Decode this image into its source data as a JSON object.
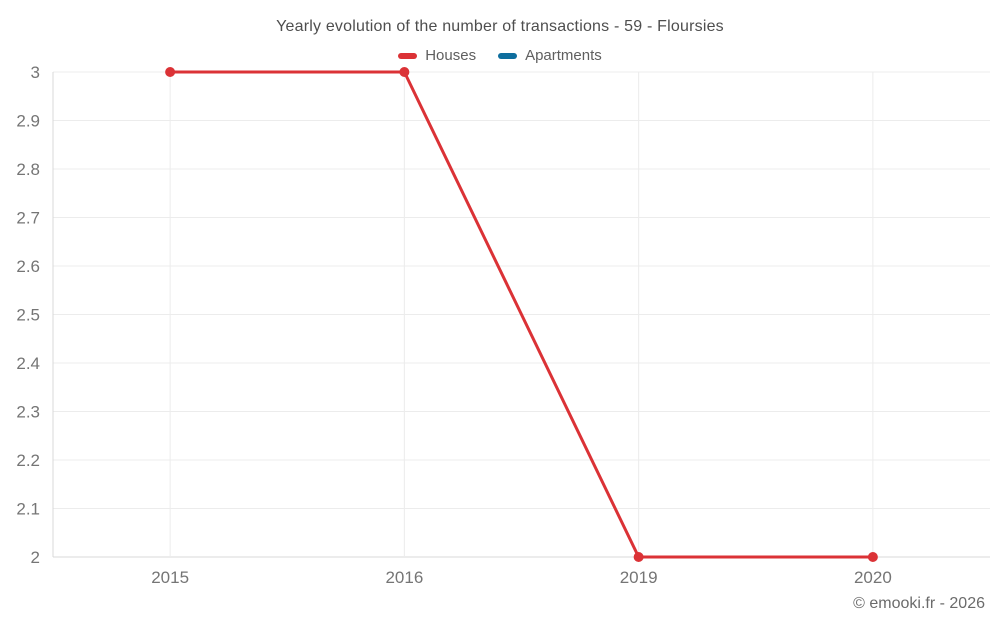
{
  "chart_data": {
    "type": "line",
    "title": "Yearly evolution of the number of transactions - 59 - Floursies",
    "categories": [
      "2015",
      "2016",
      "2019",
      "2020"
    ],
    "series": [
      {
        "name": "Houses",
        "color": "#db3236",
        "values": [
          3,
          3,
          2,
          2
        ]
      },
      {
        "name": "Apartments",
        "color": "#0e6e9e",
        "values": []
      }
    ],
    "ylim": [
      2,
      3
    ],
    "ytick_step": 0.1,
    "ytick_labels": [
      "2",
      "2.1",
      "2.2",
      "2.3",
      "2.4",
      "2.5",
      "2.6",
      "2.7",
      "2.8",
      "2.9",
      "3"
    ],
    "grid": true,
    "legend_position": "top",
    "marker": "circle"
  },
  "footer": {
    "copyright": "© emooki.fr - 2026"
  },
  "colors": {
    "grid": "#ececec",
    "axis": "#d9d9d9",
    "tick_text": "#757575",
    "title_text": "#4e4e4e",
    "legend_text": "#5f5f5f"
  }
}
